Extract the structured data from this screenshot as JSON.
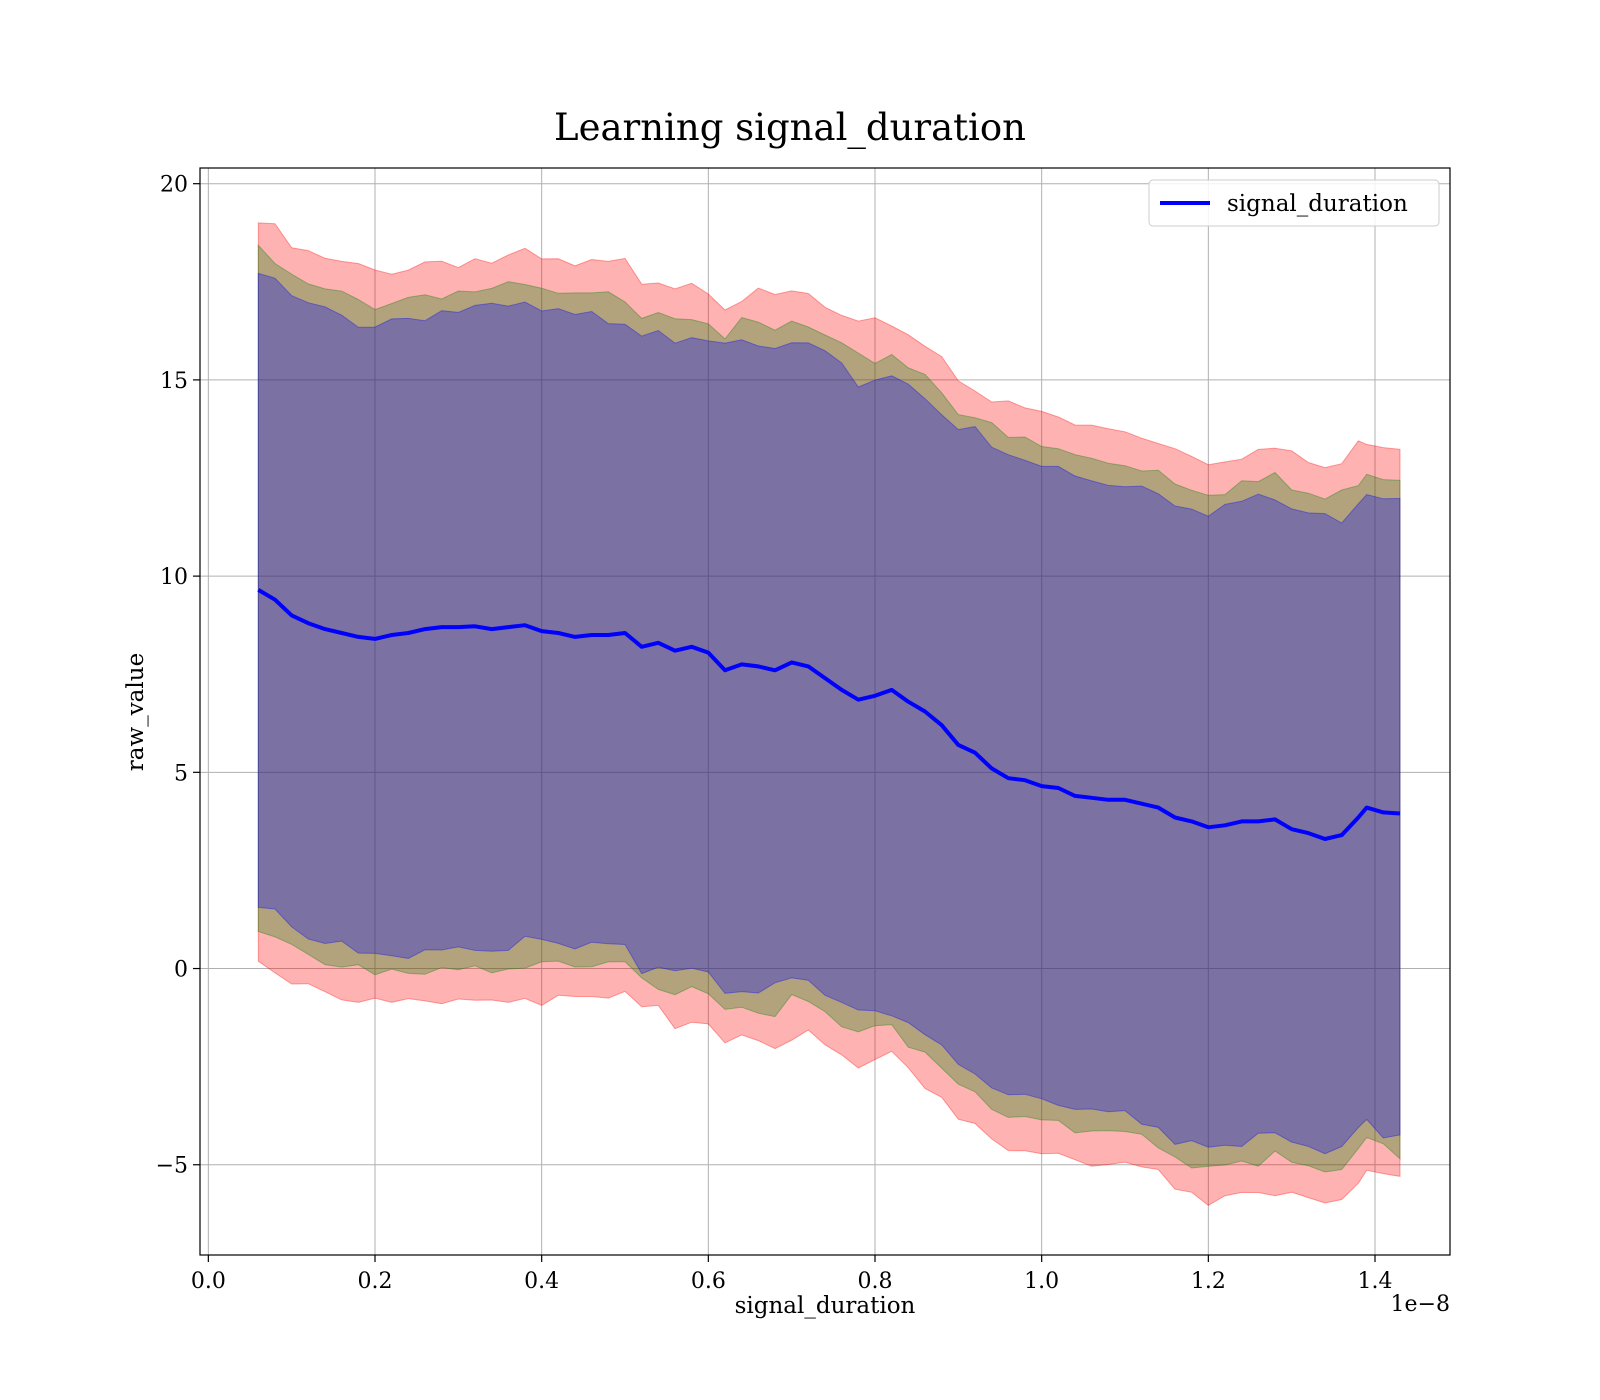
{
  "chart_data": {
    "type": "line",
    "title": "Learning signal_duration",
    "xlabel": "signal_duration",
    "ylabel": "raw_value",
    "x_offset_label": "1e−8",
    "xlim": [
      -1e-10,
      1.49e-08
    ],
    "ylim": [
      -7.3,
      20.4
    ],
    "grid": true,
    "legend_position": "upper right",
    "x_ticks": [
      0.0,
      2e-09,
      4e-09,
      6e-09,
      8e-09,
      1e-08,
      1.2e-08,
      1.4e-08
    ],
    "x_tick_labels": [
      "0.0",
      "0.2",
      "0.4",
      "0.6",
      "0.8",
      "1.0",
      "1.2",
      "1.4"
    ],
    "y_ticks": [
      -5,
      0,
      5,
      10,
      15,
      20
    ],
    "y_tick_labels": [
      "−5",
      "0",
      "5",
      "10",
      "15",
      "20"
    ],
    "series": [
      {
        "name": "signal_duration",
        "color": "#0000ff",
        "x": [
          6e-10,
          8e-10,
          1e-09,
          1.2e-09,
          1.4e-09,
          1.6e-09,
          1.8e-09,
          2e-09,
          2.2e-09,
          2.4e-09,
          2.6e-09,
          2.8e-09,
          3e-09,
          3.2e-09,
          3.4e-09,
          3.6e-09,
          3.8e-09,
          4e-09,
          4.2e-09,
          4.4e-09,
          4.6e-09,
          4.8e-09,
          5e-09,
          5.2e-09,
          5.4e-09,
          5.6e-09,
          5.8e-09,
          6e-09,
          6.2e-09,
          6.4e-09,
          6.6e-09,
          6.8e-09,
          7e-09,
          7.2e-09,
          7.4e-09,
          7.6e-09,
          7.8e-09,
          8e-09,
          8.2e-09,
          8.4e-09,
          8.6e-09,
          8.8e-09,
          9e-09,
          9.2e-09,
          9.4e-09,
          9.6e-09,
          9.8e-09,
          1e-08,
          1.02e-08,
          1.04e-08,
          1.06e-08,
          1.08e-08,
          1.1e-08,
          1.12e-08,
          1.14e-08,
          1.16e-08,
          1.18e-08,
          1.2e-08,
          1.22e-08,
          1.24e-08,
          1.26e-08,
          1.28e-08,
          1.3e-08,
          1.32e-08,
          1.34e-08,
          1.36e-08,
          1.38e-08,
          1.39e-08,
          1.41e-08,
          1.43e-08
        ],
        "y": [
          9.65,
          9.4,
          9.0,
          8.8,
          8.65,
          8.55,
          8.45,
          8.4,
          8.5,
          8.55,
          8.65,
          8.7,
          8.7,
          8.72,
          8.65,
          8.7,
          8.75,
          8.6,
          8.55,
          8.45,
          8.5,
          8.5,
          8.55,
          8.2,
          8.3,
          8.1,
          8.2,
          8.05,
          7.6,
          7.75,
          7.7,
          7.6,
          7.8,
          7.7,
          7.4,
          7.1,
          6.85,
          6.95,
          7.1,
          6.8,
          6.55,
          6.2,
          5.7,
          5.5,
          5.1,
          4.85,
          4.8,
          4.65,
          4.6,
          4.4,
          4.35,
          4.3,
          4.3,
          4.2,
          4.1,
          3.85,
          3.75,
          3.6,
          3.65,
          3.75,
          3.75,
          3.8,
          3.55,
          3.45,
          3.3,
          3.4,
          3.85,
          4.1,
          3.98,
          3.95
        ]
      }
    ],
    "bands": [
      {
        "color": "#ff0000",
        "opacity": 0.3,
        "half_widths_start": 9.35,
        "half_widths_end": 9.45
      },
      {
        "color": "#008000",
        "opacity": 0.3,
        "half_widths_start": 8.55,
        "half_widths_end": 8.65
      },
      {
        "color": "#0000ff",
        "opacity": 0.3,
        "half_widths_start": 8.05,
        "half_widths_end": 8.15
      }
    ]
  }
}
